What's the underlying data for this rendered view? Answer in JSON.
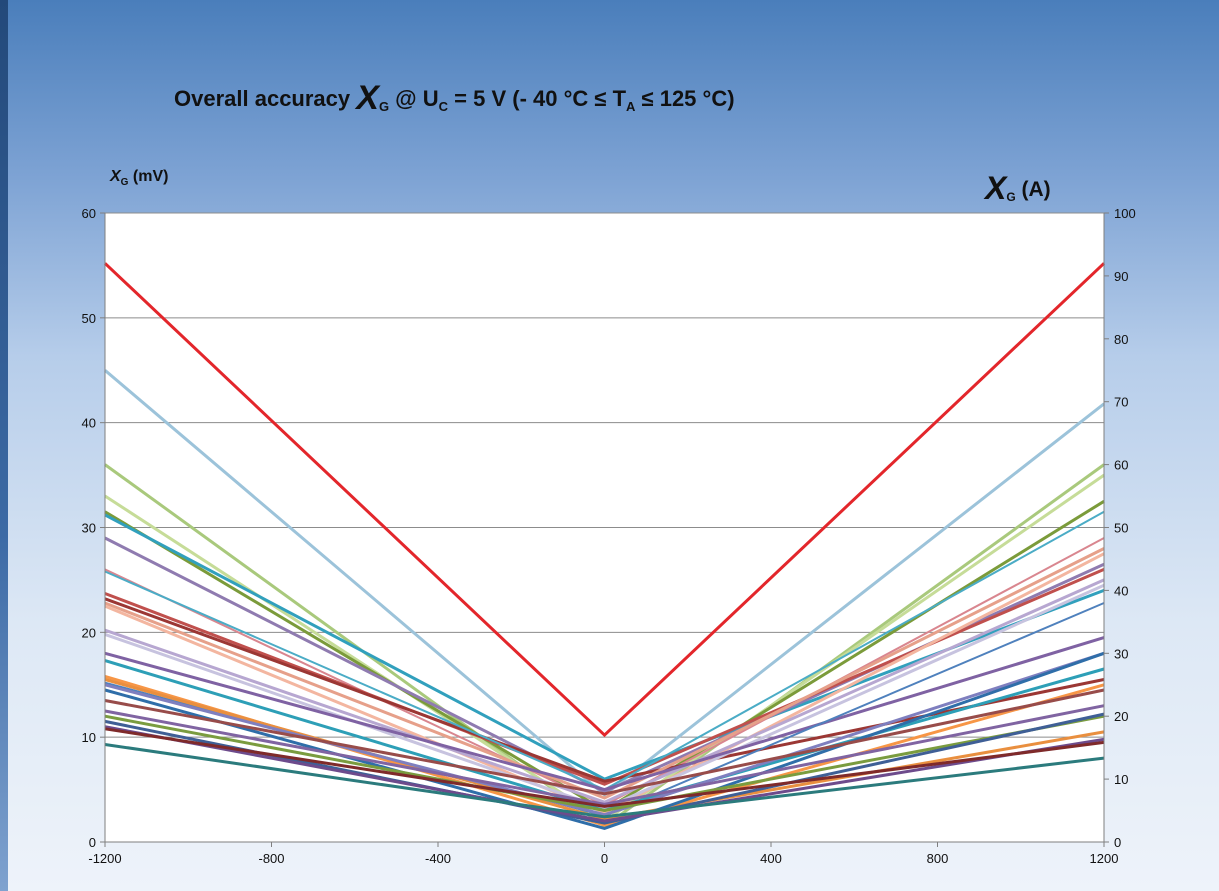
{
  "title": {
    "prefix": "Overall accuracy ",
    "symbol": "X",
    "symbol_sub": "G",
    "middle": " @ U",
    "middle_sub": "C",
    "condition": " = 5 V (- 40 °C ≤ T",
    "condition_sub": "A",
    "suffix": " ≤ 125 °C)"
  },
  "ylabel_left": {
    "symbol": "X",
    "sub": "G",
    "unit": " (mV)"
  },
  "ylabel_right": {
    "symbol": "X",
    "sub": "G",
    "unit": " (A)"
  },
  "chart_data": {
    "type": "line",
    "title": "Overall accuracy XG @ UC = 5 V (- 40 °C ≤ TA ≤ 125 °C)",
    "xlabel": "",
    "ylabel": "XG (mV)",
    "y2label": "XG (A)",
    "x": [
      -1200,
      0,
      1200
    ],
    "xticks": [
      -1200,
      -800,
      -400,
      0,
      400,
      800,
      1200
    ],
    "xlim": [
      -1200,
      1200
    ],
    "ylim": [
      0,
      60
    ],
    "yticks": [
      0,
      10,
      20,
      30,
      40,
      50,
      60
    ],
    "y2lim": [
      0,
      100
    ],
    "y2ticks": [
      0,
      10,
      20,
      30,
      40,
      50,
      60,
      70,
      80,
      90,
      100
    ],
    "grid": true,
    "legend": "none",
    "series": [
      {
        "color": "#e3262b",
        "width": 3,
        "values": [
          55.2,
          10.2,
          55.2
        ]
      },
      {
        "color": "#9cc3da",
        "width": 3,
        "values": [
          45.0,
          4.5,
          41.8
        ]
      },
      {
        "color": "#a9c97c",
        "width": 3,
        "values": [
          36.0,
          1.5,
          36.0
        ]
      },
      {
        "color": "#c6dc98",
        "width": 3,
        "values": [
          33.0,
          2.0,
          35.0
        ]
      },
      {
        "color": "#7b9b3a",
        "width": 3,
        "values": [
          31.5,
          3.0,
          32.5
        ]
      },
      {
        "color": "#31a0bd",
        "width": 3,
        "values": [
          31.2,
          6.0,
          24.0
        ]
      },
      {
        "color": "#8f7bb0",
        "width": 3,
        "values": [
          29.0,
          4.8,
          26.5
        ]
      },
      {
        "color": "#d9868f",
        "width": 2,
        "values": [
          26.0,
          3.5,
          29.0
        ]
      },
      {
        "color": "#c0504d",
        "width": 3,
        "values": [
          23.7,
          5.5,
          26.0
        ]
      },
      {
        "color": "#9b3734",
        "width": 3,
        "values": [
          23.2,
          5.8,
          15.5
        ]
      },
      {
        "color": "#e6a08a",
        "width": 3,
        "values": [
          22.8,
          4.2,
          28.0
        ]
      },
      {
        "color": "#f3b6a0",
        "width": 3,
        "values": [
          22.5,
          2.8,
          27.5
        ]
      },
      {
        "color": "#4bacc6",
        "width": 2,
        "values": [
          25.8,
          5.0,
          31.5
        ]
      },
      {
        "color": "#b7a7d1",
        "width": 3,
        "values": [
          20.2,
          3.8,
          25.0
        ]
      },
      {
        "color": "#c7c3df",
        "width": 3,
        "values": [
          19.8,
          3.2,
          24.5
        ]
      },
      {
        "color": "#7f62a3",
        "width": 3,
        "values": [
          18.0,
          5.0,
          19.5
        ]
      },
      {
        "color": "#4f81bd",
        "width": 2,
        "values": [
          15.2,
          2.5,
          22.8
        ]
      },
      {
        "color": "#2d9fb7",
        "width": 3,
        "values": [
          17.3,
          3.0,
          16.5
        ]
      },
      {
        "color": "#f79646",
        "width": 3,
        "values": [
          15.8,
          1.6,
          15.0
        ]
      },
      {
        "color": "#e98f3f",
        "width": 3,
        "values": [
          15.5,
          2.2,
          10.5
        ]
      },
      {
        "color": "#7f7fbf",
        "width": 3,
        "values": [
          15.0,
          2.6,
          18.0
        ]
      },
      {
        "color": "#2f6ea9",
        "width": 3,
        "values": [
          14.5,
          1.3,
          18.0
        ]
      },
      {
        "color": "#984c4a",
        "width": 3,
        "values": [
          13.5,
          4.6,
          14.5
        ]
      },
      {
        "color": "#8064a2",
        "width": 3,
        "values": [
          12.5,
          3.6,
          13.0
        ]
      },
      {
        "color": "#7a9c3f",
        "width": 3,
        "values": [
          12.0,
          3.0,
          12.0
        ]
      },
      {
        "color": "#3f5f96",
        "width": 3,
        "values": [
          11.5,
          1.8,
          12.2
        ]
      },
      {
        "color": "#6d4b8c",
        "width": 3,
        "values": [
          11.0,
          2.0,
          9.8
        ]
      },
      {
        "color": "#7f2a2a",
        "width": 3,
        "values": [
          10.8,
          3.4,
          9.5
        ]
      },
      {
        "color": "#2b7b7d",
        "width": 3,
        "values": [
          9.3,
          2.4,
          8.0
        ]
      }
    ]
  }
}
